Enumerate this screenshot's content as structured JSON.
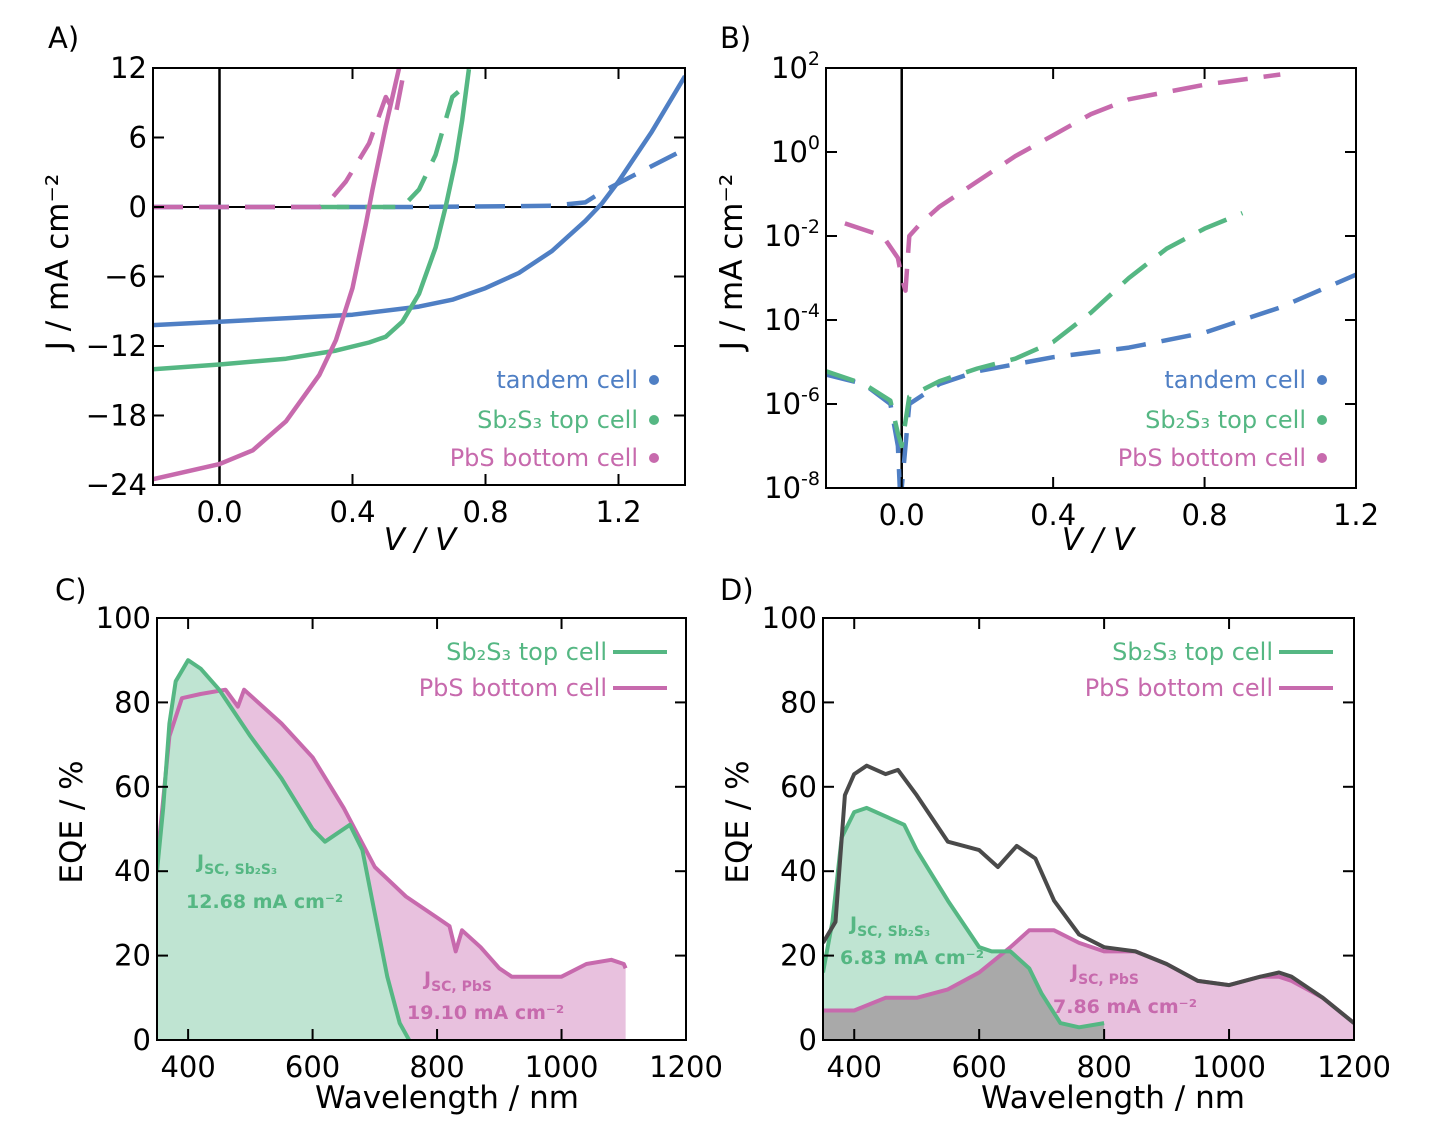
{
  "colors": {
    "tandem": "#4f7fc4",
    "sb2s3": "#55b783",
    "pbs": "#c76aad",
    "tandem_eqe": "#4a4a4a",
    "sb2s3_fill": "#bfe4d2",
    "pbs_fill": "#e8c1de",
    "overlap_fill": "#a9a9a9"
  },
  "chart_data": [
    {
      "panel": "A)",
      "type": "line",
      "xlabel": "V / V",
      "ylabel": "J / mA cm⁻²",
      "xlim": [
        -0.2,
        1.4
      ],
      "ylim": [
        -24,
        12
      ],
      "xticks": [
        "0.0",
        "0.4",
        "0.8",
        "1.2"
      ],
      "xtick_values": [
        0,
        0.4,
        0.8,
        1.2
      ],
      "yticks": [
        "12",
        "6",
        "0",
        "−6",
        "−12",
        "−18",
        "−24"
      ],
      "ytick_values": [
        12,
        6,
        0,
        -6,
        -12,
        -18,
        -24
      ],
      "legend_placement": "bottom-right",
      "series": [
        {
          "name": "tandem cell",
          "key": "tandem",
          "style": "solid",
          "x": [
            -0.2,
            0,
            0.2,
            0.4,
            0.6,
            0.7,
            0.8,
            0.9,
            1.0,
            1.1,
            1.15,
            1.2,
            1.3,
            1.4
          ],
          "y": [
            -10.2,
            -9.9,
            -9.6,
            -9.3,
            -8.6,
            -8.0,
            -7.0,
            -5.7,
            -3.8,
            -1.2,
            0.3,
            2.2,
            6.5,
            11.3
          ]
        },
        {
          "key": "tandem",
          "style": "dashed",
          "x": [
            -0.2,
            0.2,
            0.6,
            1.0,
            1.1,
            1.15,
            1.25,
            1.4
          ],
          "y": [
            0,
            0,
            0,
            0.1,
            0.4,
            1.3,
            2.8,
            5.0
          ]
        },
        {
          "name": "Sb₂S₃ top cell",
          "key": "sb2s3",
          "style": "solid",
          "x": [
            -0.2,
            0,
            0.2,
            0.35,
            0.45,
            0.5,
            0.55,
            0.6,
            0.65,
            0.68,
            0.71,
            0.73,
            0.75
          ],
          "y": [
            -14.0,
            -13.6,
            -13.1,
            -12.4,
            -11.7,
            -11.2,
            -9.9,
            -7.5,
            -3.5,
            0,
            4,
            7.5,
            11.9
          ]
        },
        {
          "key": "sb2s3",
          "style": "dashed",
          "x": [
            0.3,
            0.55,
            0.6,
            0.65,
            0.7,
            0.74
          ],
          "y": [
            0,
            0,
            1.5,
            4.5,
            9.5,
            10.5
          ]
        },
        {
          "name": "PbS bottom cell",
          "key": "pbs",
          "style": "solid",
          "x": [
            -0.2,
            0,
            0.1,
            0.2,
            0.3,
            0.35,
            0.4,
            0.44,
            0.46,
            0.5,
            0.54
          ],
          "y": [
            -23.5,
            -22.2,
            -21,
            -18.5,
            -14.5,
            -11.5,
            -7,
            -1.5,
            1.5,
            7,
            12
          ]
        },
        {
          "key": "pbs",
          "style": "dashed",
          "x": [
            -0.2,
            0.1,
            0.3,
            0.33,
            0.38,
            0.45,
            0.5,
            0.53,
            0.55
          ],
          "y": [
            0,
            0,
            0,
            0.5,
            2.2,
            5.5,
            9.5,
            8,
            11
          ]
        }
      ]
    },
    {
      "panel": "B)",
      "type": "line",
      "xlabel": "V / V",
      "ylabel": "J / mA cm⁻²",
      "yscale": "log",
      "xlim": [
        -0.2,
        1.2
      ],
      "ylim": [
        1e-08,
        100.0
      ],
      "xticks": [
        "0.0",
        "0.4",
        "0.8",
        "1.2"
      ],
      "xtick_values": [
        0,
        0.4,
        0.8,
        1.2
      ],
      "ytick_base": "10",
      "ytick_exponents": [
        "2",
        "0",
        "-2",
        "-4",
        "-6",
        "-8"
      ],
      "legend_placement": "bottom-right",
      "series": [
        {
          "name": "tandem cell",
          "key": "tandem",
          "style": "dashed",
          "x": [
            -0.2,
            -0.1,
            -0.03,
            -0.01,
            -0.005,
            0.0,
            0.02,
            0.1,
            0.2,
            0.4,
            0.6,
            0.8,
            1.0,
            1.2
          ],
          "y": [
            5e-06,
            3e-06,
            1e-06,
            1e-07,
            1e-08,
            1e-08,
            1e-06,
            3e-06,
            6e-06,
            1.3e-05,
            2.2e-05,
            5e-05,
            0.0002,
            0.0012
          ]
        },
        {
          "name": "Sb₂S₃ top cell",
          "key": "sb2s3",
          "style": "dashed",
          "x": [
            -0.2,
            -0.1,
            -0.03,
            -0.01,
            0.0,
            0.02,
            0.1,
            0.2,
            0.3,
            0.4,
            0.5,
            0.6,
            0.7,
            0.8,
            0.9
          ],
          "y": [
            6e-06,
            3e-06,
            1.2e-06,
            2e-07,
            1e-07,
            1.5e-06,
            3.5e-06,
            7e-06,
            1.2e-05,
            3e-05,
            0.00015,
            0.001,
            0.005,
            0.015,
            0.035
          ]
        },
        {
          "name": "PbS bottom cell",
          "key": "pbs",
          "style": "dashed",
          "x": [
            -0.15,
            -0.05,
            -0.01,
            0.0,
            0.01,
            0.02,
            0.05,
            0.1,
            0.2,
            0.3,
            0.4,
            0.5,
            0.6,
            0.8,
            1.0
          ],
          "y": [
            0.02,
            0.01,
            0.003,
            0.001,
            0.0005,
            0.01,
            0.02,
            0.05,
            0.2,
            0.8,
            2.5,
            8,
            18,
            40,
            70
          ]
        }
      ]
    },
    {
      "panel": "C)",
      "type": "area",
      "xlabel": "Wavelength / nm",
      "ylabel": "EQE / %",
      "xlim": [
        350,
        1200
      ],
      "ylim": [
        0,
        100
      ],
      "xticks": [
        "400",
        "600",
        "800",
        "1000",
        "1200"
      ],
      "xtick_values": [
        400,
        600,
        800,
        1000,
        1200
      ],
      "yticks": [
        "100",
        "80",
        "60",
        "40",
        "20",
        "0"
      ],
      "ytick_values": [
        100,
        80,
        60,
        40,
        20,
        0
      ],
      "legend_placement": "top-right",
      "series": [
        {
          "name": "PbS bottom cell",
          "key": "pbs",
          "x": [
            350,
            370,
            390,
            420,
            460,
            480,
            490,
            550,
            600,
            650,
            700,
            750,
            800,
            820,
            830,
            840,
            870,
            900,
            920,
            980,
            1000,
            1040,
            1080,
            1100,
            1103
          ],
          "y": [
            42,
            72,
            81,
            82,
            83,
            79,
            83,
            75,
            67,
            55,
            41,
            34,
            29,
            27,
            21,
            26,
            22,
            17,
            15,
            15,
            15,
            18,
            19,
            18,
            17
          ]
        },
        {
          "name": "Sb₂S₃ top cell",
          "key": "sb2s3",
          "x": [
            350,
            360,
            370,
            380,
            400,
            420,
            450,
            500,
            550,
            600,
            620,
            640,
            660,
            680,
            700,
            720,
            740,
            755
          ],
          "y": [
            40,
            55,
            75,
            85,
            90,
            88,
            83,
            72,
            62,
            50,
            47,
            49,
            51,
            45,
            30,
            15,
            4,
            0
          ]
        }
      ],
      "annotations": [
        {
          "key": "sb2s3",
          "symbol": "J",
          "sub": "SC, Sb₂S₃",
          "value": "12.68 mA cm⁻²"
        },
        {
          "key": "pbs",
          "symbol": "J",
          "sub": "SC, PbS",
          "value": "19.10 mA cm⁻²"
        }
      ]
    },
    {
      "panel": "D)",
      "type": "area",
      "xlabel": "Wavelength / nm",
      "ylabel": "EQE / %",
      "xlim": [
        350,
        1200
      ],
      "ylim": [
        0,
        100
      ],
      "xticks": [
        "400",
        "600",
        "800",
        "1000",
        "1200"
      ],
      "xtick_values": [
        400,
        600,
        800,
        1000,
        1200
      ],
      "yticks": [
        "100",
        "80",
        "60",
        "40",
        "20",
        "0"
      ],
      "ytick_values": [
        100,
        80,
        60,
        40,
        20,
        0
      ],
      "legend_placement": "top-right",
      "series": [
        {
          "name": "PbS bottom cell",
          "key": "pbs",
          "x": [
            350,
            400,
            450,
            500,
            550,
            600,
            650,
            680,
            720,
            760,
            800,
            850,
            900,
            950,
            1000,
            1050,
            1080,
            1100,
            1150,
            1200
          ],
          "y": [
            7,
            7,
            10,
            10,
            12,
            16,
            22,
            26,
            26,
            23,
            21,
            21,
            18,
            14,
            13,
            15,
            15,
            14,
            10,
            4
          ]
        },
        {
          "name": "Sb₂S₃ top cell",
          "key": "sb2s3",
          "x": [
            350,
            365,
            380,
            400,
            420,
            450,
            480,
            500,
            550,
            600,
            620,
            650,
            680,
            700,
            730,
            760,
            800
          ],
          "y": [
            16,
            28,
            48,
            54,
            55,
            53,
            51,
            45,
            33,
            22,
            21,
            21,
            17,
            11,
            4,
            3,
            4
          ]
        },
        {
          "key": "tandem_eqe",
          "x": [
            350,
            370,
            385,
            400,
            420,
            450,
            470,
            500,
            550,
            600,
            630,
            660,
            690,
            720,
            760,
            800,
            850,
            900,
            950,
            1000,
            1050,
            1080,
            1100,
            1150,
            1200
          ],
          "y": [
            23,
            28,
            58,
            63,
            65,
            63,
            64,
            58,
            47,
            45,
            41,
            46,
            43,
            33,
            25,
            22,
            21,
            18,
            14,
            13,
            15,
            16,
            15,
            10,
            4
          ]
        }
      ],
      "annotations": [
        {
          "key": "sb2s3",
          "symbol": "J",
          "sub": "SC, Sb₂S₃",
          "value": "6.83 mA cm⁻²"
        },
        {
          "key": "pbs",
          "symbol": "J",
          "sub": "SC, PbS",
          "value": "7.86 mA cm⁻²"
        }
      ]
    }
  ]
}
